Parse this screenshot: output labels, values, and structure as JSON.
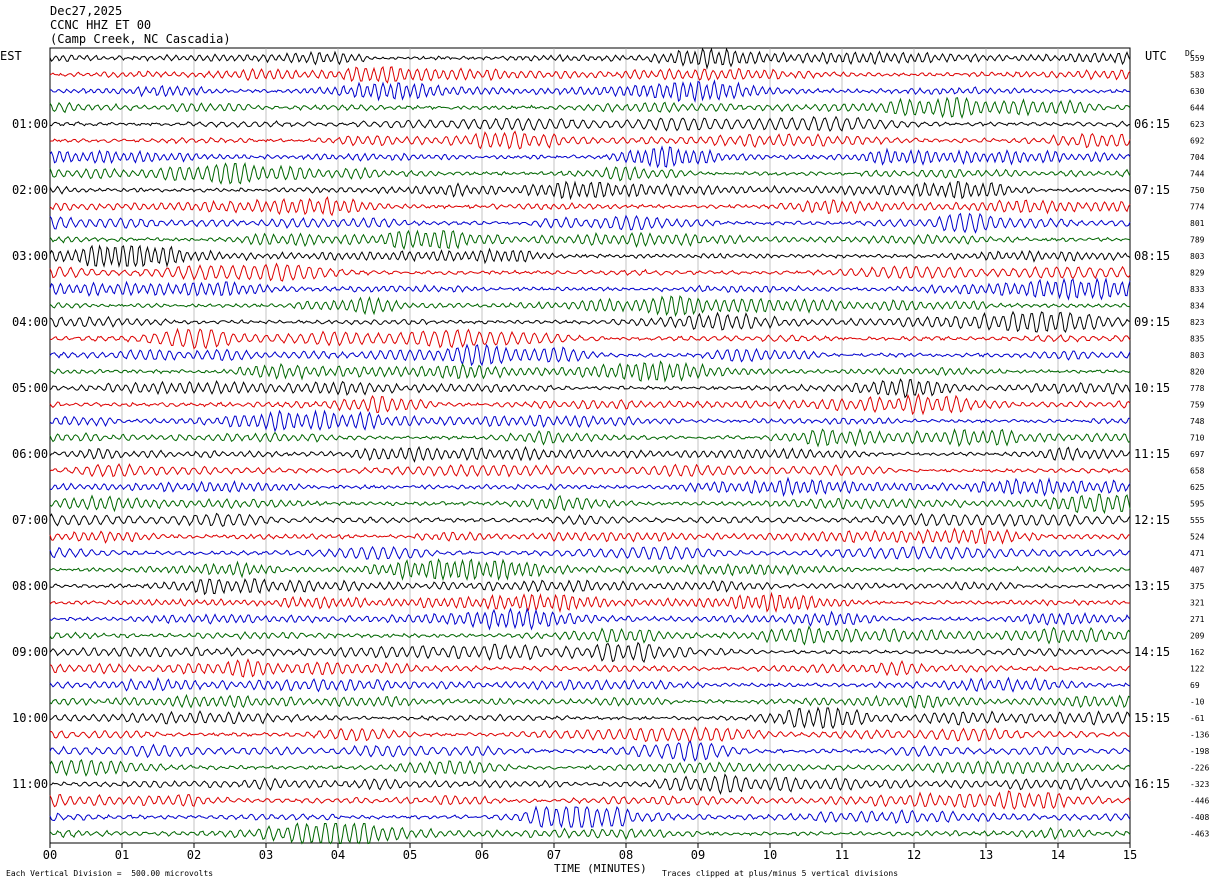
{
  "header": {
    "date": "Dec27,2025",
    "station": "CCNC HHZ ET 00",
    "location": "(Camp Creek, NC Cascadia)"
  },
  "axes": {
    "left_timezone": "EST",
    "right_timezone": "UTC",
    "dc_label": "DC",
    "xlabel": "TIME (MINUTES)"
  },
  "footer": {
    "scale_note": "Each Vertical Division =  500.00 microvolts",
    "clip_note": "Traces clipped at plus/minus 5 vertical divisions"
  },
  "chart_data": {
    "type": "line",
    "x_ticks": [
      "00",
      "01",
      "02",
      "03",
      "04",
      "05",
      "06",
      "07",
      "08",
      "09",
      "10",
      "11",
      "12",
      "13",
      "14",
      "15"
    ],
    "xlim": [
      0,
      15
    ],
    "grid": true,
    "trace_colors": [
      "#000000",
      "#dd0000",
      "#0000cc",
      "#006600"
    ],
    "left_hour_labels": [
      "01:00",
      "02:00",
      "03:00",
      "04:00",
      "05:00",
      "06:00",
      "07:00",
      "08:00",
      "09:00",
      "10:00",
      "11:00"
    ],
    "right_hour_labels": [
      "06:15",
      "07:15",
      "08:15",
      "09:15",
      "10:15",
      "11:15",
      "12:15",
      "13:15",
      "14:15",
      "15:15",
      "16:15"
    ],
    "dc_offsets": [
      "559",
      "583",
      "630",
      "644",
      "623",
      "692",
      "704",
      "744",
      "750",
      "774",
      "801",
      "789",
      "803",
      "829",
      "833",
      "834",
      "823",
      "835",
      "803",
      "820",
      "778",
      "759",
      "748",
      "710",
      "697",
      "658",
      "625",
      "595",
      "555",
      "524",
      "471",
      "407",
      "375",
      "321",
      "271",
      "209",
      "162",
      "122",
      "69",
      "-10",
      "-61",
      "-136",
      "-198",
      "-226",
      "-323",
      "-446",
      "-408",
      "-463"
    ]
  }
}
